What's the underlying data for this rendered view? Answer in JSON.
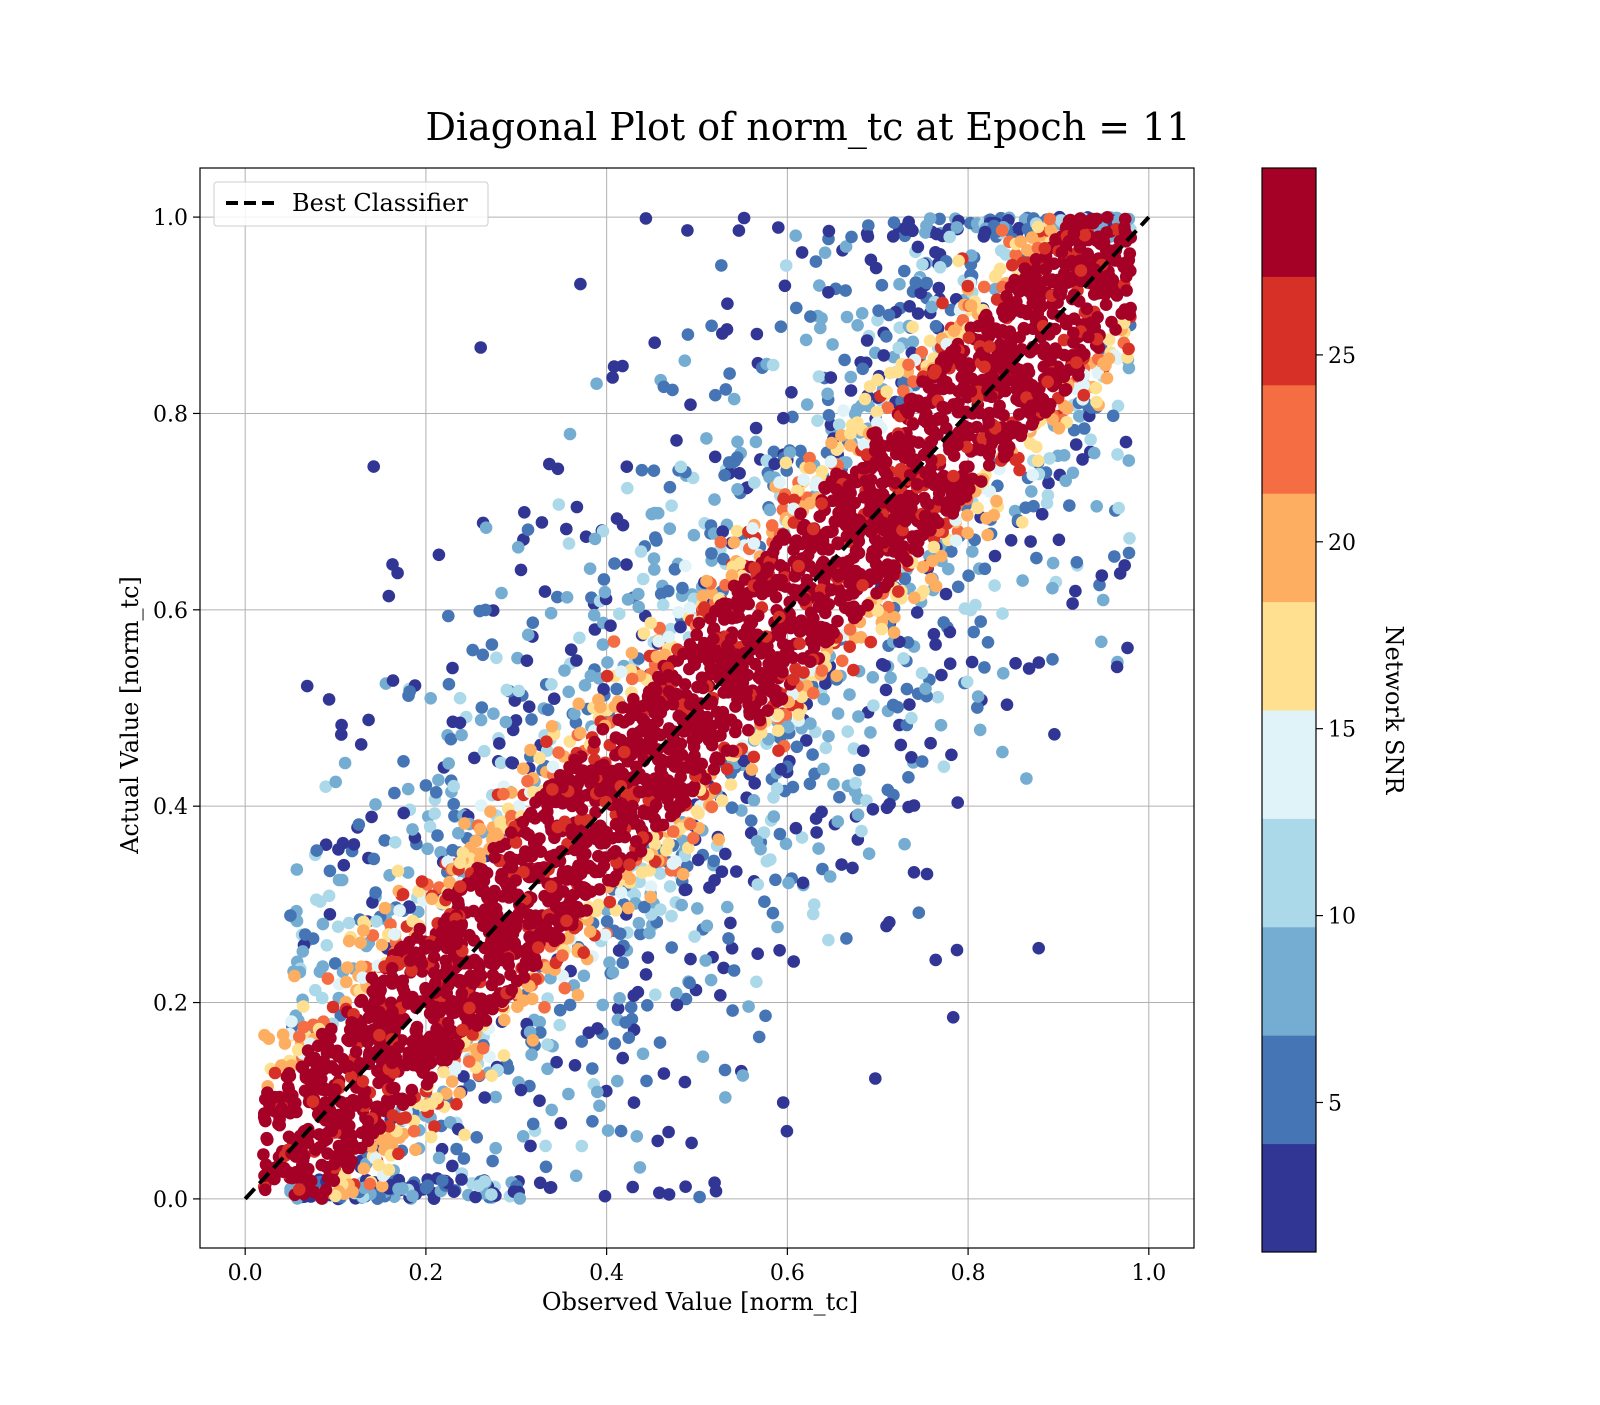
{
  "chart_data": {
    "type": "scatter",
    "title": "Diagonal Plot of norm_tc at Epoch = 11",
    "xlabel": "Observed Value [norm_tc]",
    "ylabel": "Actual Value [norm_tc]",
    "xlim": [
      -0.05,
      1.05
    ],
    "ylim": [
      -0.05,
      1.05
    ],
    "x_ticks": [
      "0.0",
      "0.2",
      "0.4",
      "0.6",
      "0.8",
      "1.0"
    ],
    "y_ticks": [
      "0.0",
      "0.2",
      "0.4",
      "0.6",
      "0.8",
      "1.0"
    ],
    "grid": true,
    "legend": {
      "position": "top-left",
      "entries": [
        "Best Classifier"
      ]
    },
    "reference_line": {
      "name": "Best Classifier",
      "style": "dashed",
      "color": "#000000",
      "x": [
        0,
        1
      ],
      "y": [
        0,
        1
      ]
    },
    "colorbar": {
      "label": "Network SNR",
      "ticks": [
        "5",
        "10",
        "15",
        "20",
        "25"
      ],
      "tick_values": [
        5,
        10,
        15,
        20,
        25
      ],
      "range": [
        1,
        30
      ],
      "colors": [
        "#313695",
        "#4575b4",
        "#74add1",
        "#abd9e9",
        "#e0f3f8",
        "#fee090",
        "#fdae61",
        "#f46d43",
        "#d73027",
        "#a50026"
      ]
    },
    "point_distribution": {
      "description_of_clusters": [
        {
          "snr": "high (>27)",
          "region": "band along diagonal",
          "half_width": 0.07
        },
        {
          "snr": "medium (15-27)",
          "region": "edges of diagonal band",
          "offset": 0.1
        },
        {
          "snr": "low (<12)",
          "region": "upper-left and lower-right wedges"
        }
      ]
    }
  }
}
